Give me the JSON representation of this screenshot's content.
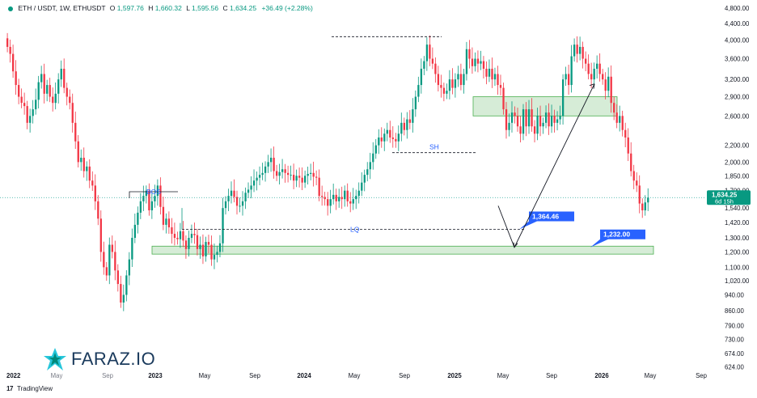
{
  "header": {
    "symbol": "ETH / USDT, 1W, ETHUSDT",
    "o_label": "O",
    "open": "1,597.76",
    "h_label": "H",
    "high": "1,660.32",
    "l_label": "L",
    "low": "1,595.56",
    "c_label": "C",
    "close": "1,634.25",
    "change": "+36.49 (+2.28%)"
  },
  "colors": {
    "up": "#089981",
    "down": "#f23645",
    "zone_fill": "#c8e6c9",
    "zone_stroke": "#4caf50",
    "label_blue": "#2962ff",
    "current_price_line": "#26a69a"
  },
  "price_label": {
    "price": "1,634.25",
    "countdown": "6d 15h"
  },
  "footer": {
    "brand": "TradingView",
    "logo_glyph": "17"
  },
  "watermark": {
    "brand": "FARAZ.IO"
  },
  "chart_data": {
    "type": "candlestick",
    "y_scale": "log",
    "ylim": [
      620,
      4800
    ],
    "y_ticks": [
      "4,800.00",
      "4,400.00",
      "4,000.00",
      "3,600.00",
      "3,200.00",
      "2,900.00",
      "2,600.00",
      "2,200.00",
      "2,000.00",
      "1,850.00",
      "1,700.00",
      "1,540.00",
      "1,420.00",
      "1,300.00",
      "1,200.00",
      "1,100.00",
      "1,020.00",
      "940.00",
      "860.00",
      "790.00",
      "730.00",
      "674.00",
      "624.00"
    ],
    "x_ticks": [
      {
        "label": "2022",
        "style": "bold"
      },
      {
        "label": "May",
        "style": "light"
      },
      {
        "label": "Sep",
        "style": "light"
      },
      {
        "label": "2023",
        "style": "bold"
      },
      {
        "label": "May",
        "style": "normal"
      },
      {
        "label": "Sep",
        "style": "normal"
      },
      {
        "label": "2024",
        "style": "bold"
      },
      {
        "label": "May",
        "style": "normal"
      },
      {
        "label": "Sep",
        "style": "normal"
      },
      {
        "label": "2025",
        "style": "bold"
      },
      {
        "label": "May",
        "style": "normal"
      },
      {
        "label": "Sep",
        "style": "normal"
      },
      {
        "label": "2026",
        "style": "bold"
      },
      {
        "label": "May",
        "style": "normal"
      },
      {
        "label": "Sep",
        "style": "normal"
      }
    ],
    "candles_close": [
      3850,
      3700,
      3350,
      3100,
      2900,
      2800,
      2750,
      2500,
      2600,
      2700,
      2850,
      3150,
      3300,
      2950,
      3100,
      2900,
      2800,
      2950,
      3200,
      3400,
      3050,
      2900,
      2800,
      2500,
      2250,
      2000,
      2050,
      1900,
      1950,
      1800,
      1750,
      1600,
      1450,
      1200,
      1100,
      1050,
      1250,
      1200,
      1080,
      1000,
      900,
      940,
      1050,
      1150,
      1300,
      1400,
      1500,
      1600,
      1650,
      1700,
      1520,
      1600,
      1650,
      1750,
      1550,
      1400,
      1450,
      1380,
      1330,
      1300,
      1290,
      1350,
      1280,
      1220,
      1300,
      1330,
      1320,
      1220,
      1250,
      1170,
      1270,
      1250,
      1150,
      1180,
      1200,
      1260,
      1540,
      1600,
      1650,
      1700,
      1640,
      1560,
      1560,
      1600,
      1680,
      1710,
      1750,
      1800,
      1830,
      1860,
      1880,
      1950,
      2000,
      2050,
      1900,
      1850,
      1890,
      1920,
      1880,
      1860,
      1860,
      1800,
      1850,
      1830,
      1780,
      1850,
      1870,
      1880,
      1840,
      1830,
      1650,
      1640,
      1620,
      1560,
      1620,
      1660,
      1600,
      1640,
      1620,
      1700,
      1600,
      1580,
      1620,
      1650,
      1700,
      1780,
      1860,
      1920,
      2000,
      2100,
      2200,
      2300,
      2250,
      2350,
      2400,
      2300,
      2280,
      2250,
      2350,
      2500,
      2400,
      2550,
      2500,
      2700,
      2900,
      3100,
      3400,
      3550,
      3900,
      3600,
      3500,
      3300,
      3100,
      3050,
      2950,
      3000,
      3200,
      3050,
      3200,
      3300,
      3100,
      3300,
      3800,
      3600,
      3450,
      3600,
      3500,
      3550,
      3400,
      3250,
      3400,
      3200,
      3300,
      3100,
      3050,
      2700,
      2400,
      2500,
      2650,
      2600,
      2450,
      2350,
      2700,
      2450,
      2700,
      2450,
      2350,
      2600,
      2450,
      2500,
      2650,
      2450,
      2600,
      2500,
      2550,
      2600,
      3200,
      3300,
      3100,
      3650,
      3900,
      3700,
      3850,
      3600,
      3500,
      3300,
      3200,
      3400,
      3500,
      3300,
      3200,
      3000,
      3250,
      2800,
      2650,
      2500,
      2600,
      2400,
      2300,
      2100,
      1900,
      1800,
      1750,
      1580,
      1520,
      1590,
      1634.25
    ],
    "annotations": [
      {
        "text": "BOS",
        "value": 1690
      },
      {
        "text": "SH",
        "value": 2110
      },
      {
        "text": "LQ",
        "value": 1364.46
      },
      {
        "text": "1,364.46",
        "value": 1364.46
      },
      {
        "text": "1,232.00",
        "value": 1232
      }
    ],
    "zones": [
      {
        "name": "supply-zone",
        "range": [
          2600,
          2900
        ]
      },
      {
        "name": "demand-zone",
        "range": [
          1185,
          1240
        ]
      }
    ],
    "projection": [
      {
        "date": "2025-04",
        "value": 1560
      },
      {
        "date": "2025-06",
        "value": 1232
      },
      {
        "date": "2025-11",
        "value": 3120
      }
    ]
  }
}
